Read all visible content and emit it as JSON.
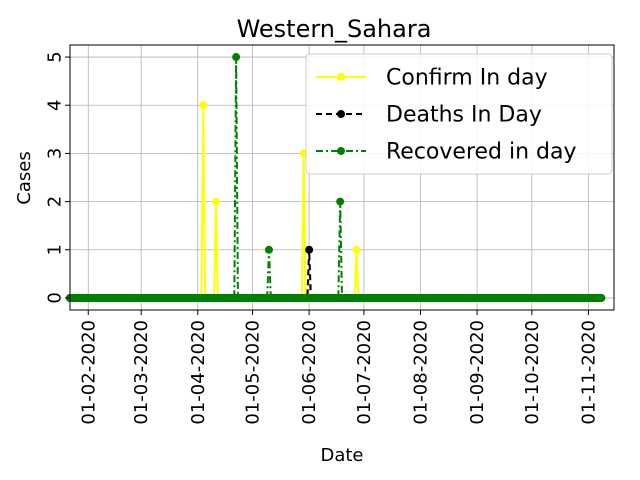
{
  "chart_data": {
    "type": "line",
    "title": "Western_Sahara",
    "xlabel": "Date",
    "ylabel": "Cases",
    "x_range": [
      "2020-01-22",
      "2020-11-15"
    ],
    "ylim": [
      -0.25,
      5.25
    ],
    "grid": true,
    "legend_position": "top-right",
    "x_ticks": [
      "2020-02-01",
      "2020-03-01",
      "2020-04-01",
      "2020-05-01",
      "2020-06-01",
      "2020-07-01",
      "2020-08-01",
      "2020-09-01",
      "2020-10-01",
      "2020-11-01"
    ],
    "x_tick_labels": [
      "01-02-2020",
      "01-03-2020",
      "01-04-2020",
      "01-05-2020",
      "01-06-2020",
      "01-07-2020",
      "01-08-2020",
      "01-09-2020",
      "01-10-2020",
      "01-11-2020"
    ],
    "y_ticks": [
      0,
      1,
      2,
      3,
      4,
      5
    ],
    "y_tick_labels": [
      "0",
      "1",
      "2",
      "3",
      "4",
      "5"
    ],
    "series": [
      {
        "name": "Confirm In day",
        "color": "#ffff00",
        "linestyle": "solid",
        "nonzero": [
          {
            "date": "2020-04-04",
            "value": 4
          },
          {
            "date": "2020-04-11",
            "value": 2
          },
          {
            "date": "2020-05-29",
            "value": 3
          },
          {
            "date": "2020-06-27",
            "value": 1
          }
        ]
      },
      {
        "name": "Deaths In Day",
        "color": "#000000",
        "linestyle": "dashed",
        "nonzero": [
          {
            "date": "2020-06-01",
            "value": 1
          }
        ]
      },
      {
        "name": "Recovered in day",
        "color": "#008000",
        "linestyle": "dashdot",
        "nonzero": [
          {
            "date": "2020-04-22",
            "value": 5
          },
          {
            "date": "2020-05-10",
            "value": 1
          },
          {
            "date": "2020-06-18",
            "value": 2
          }
        ]
      }
    ]
  }
}
